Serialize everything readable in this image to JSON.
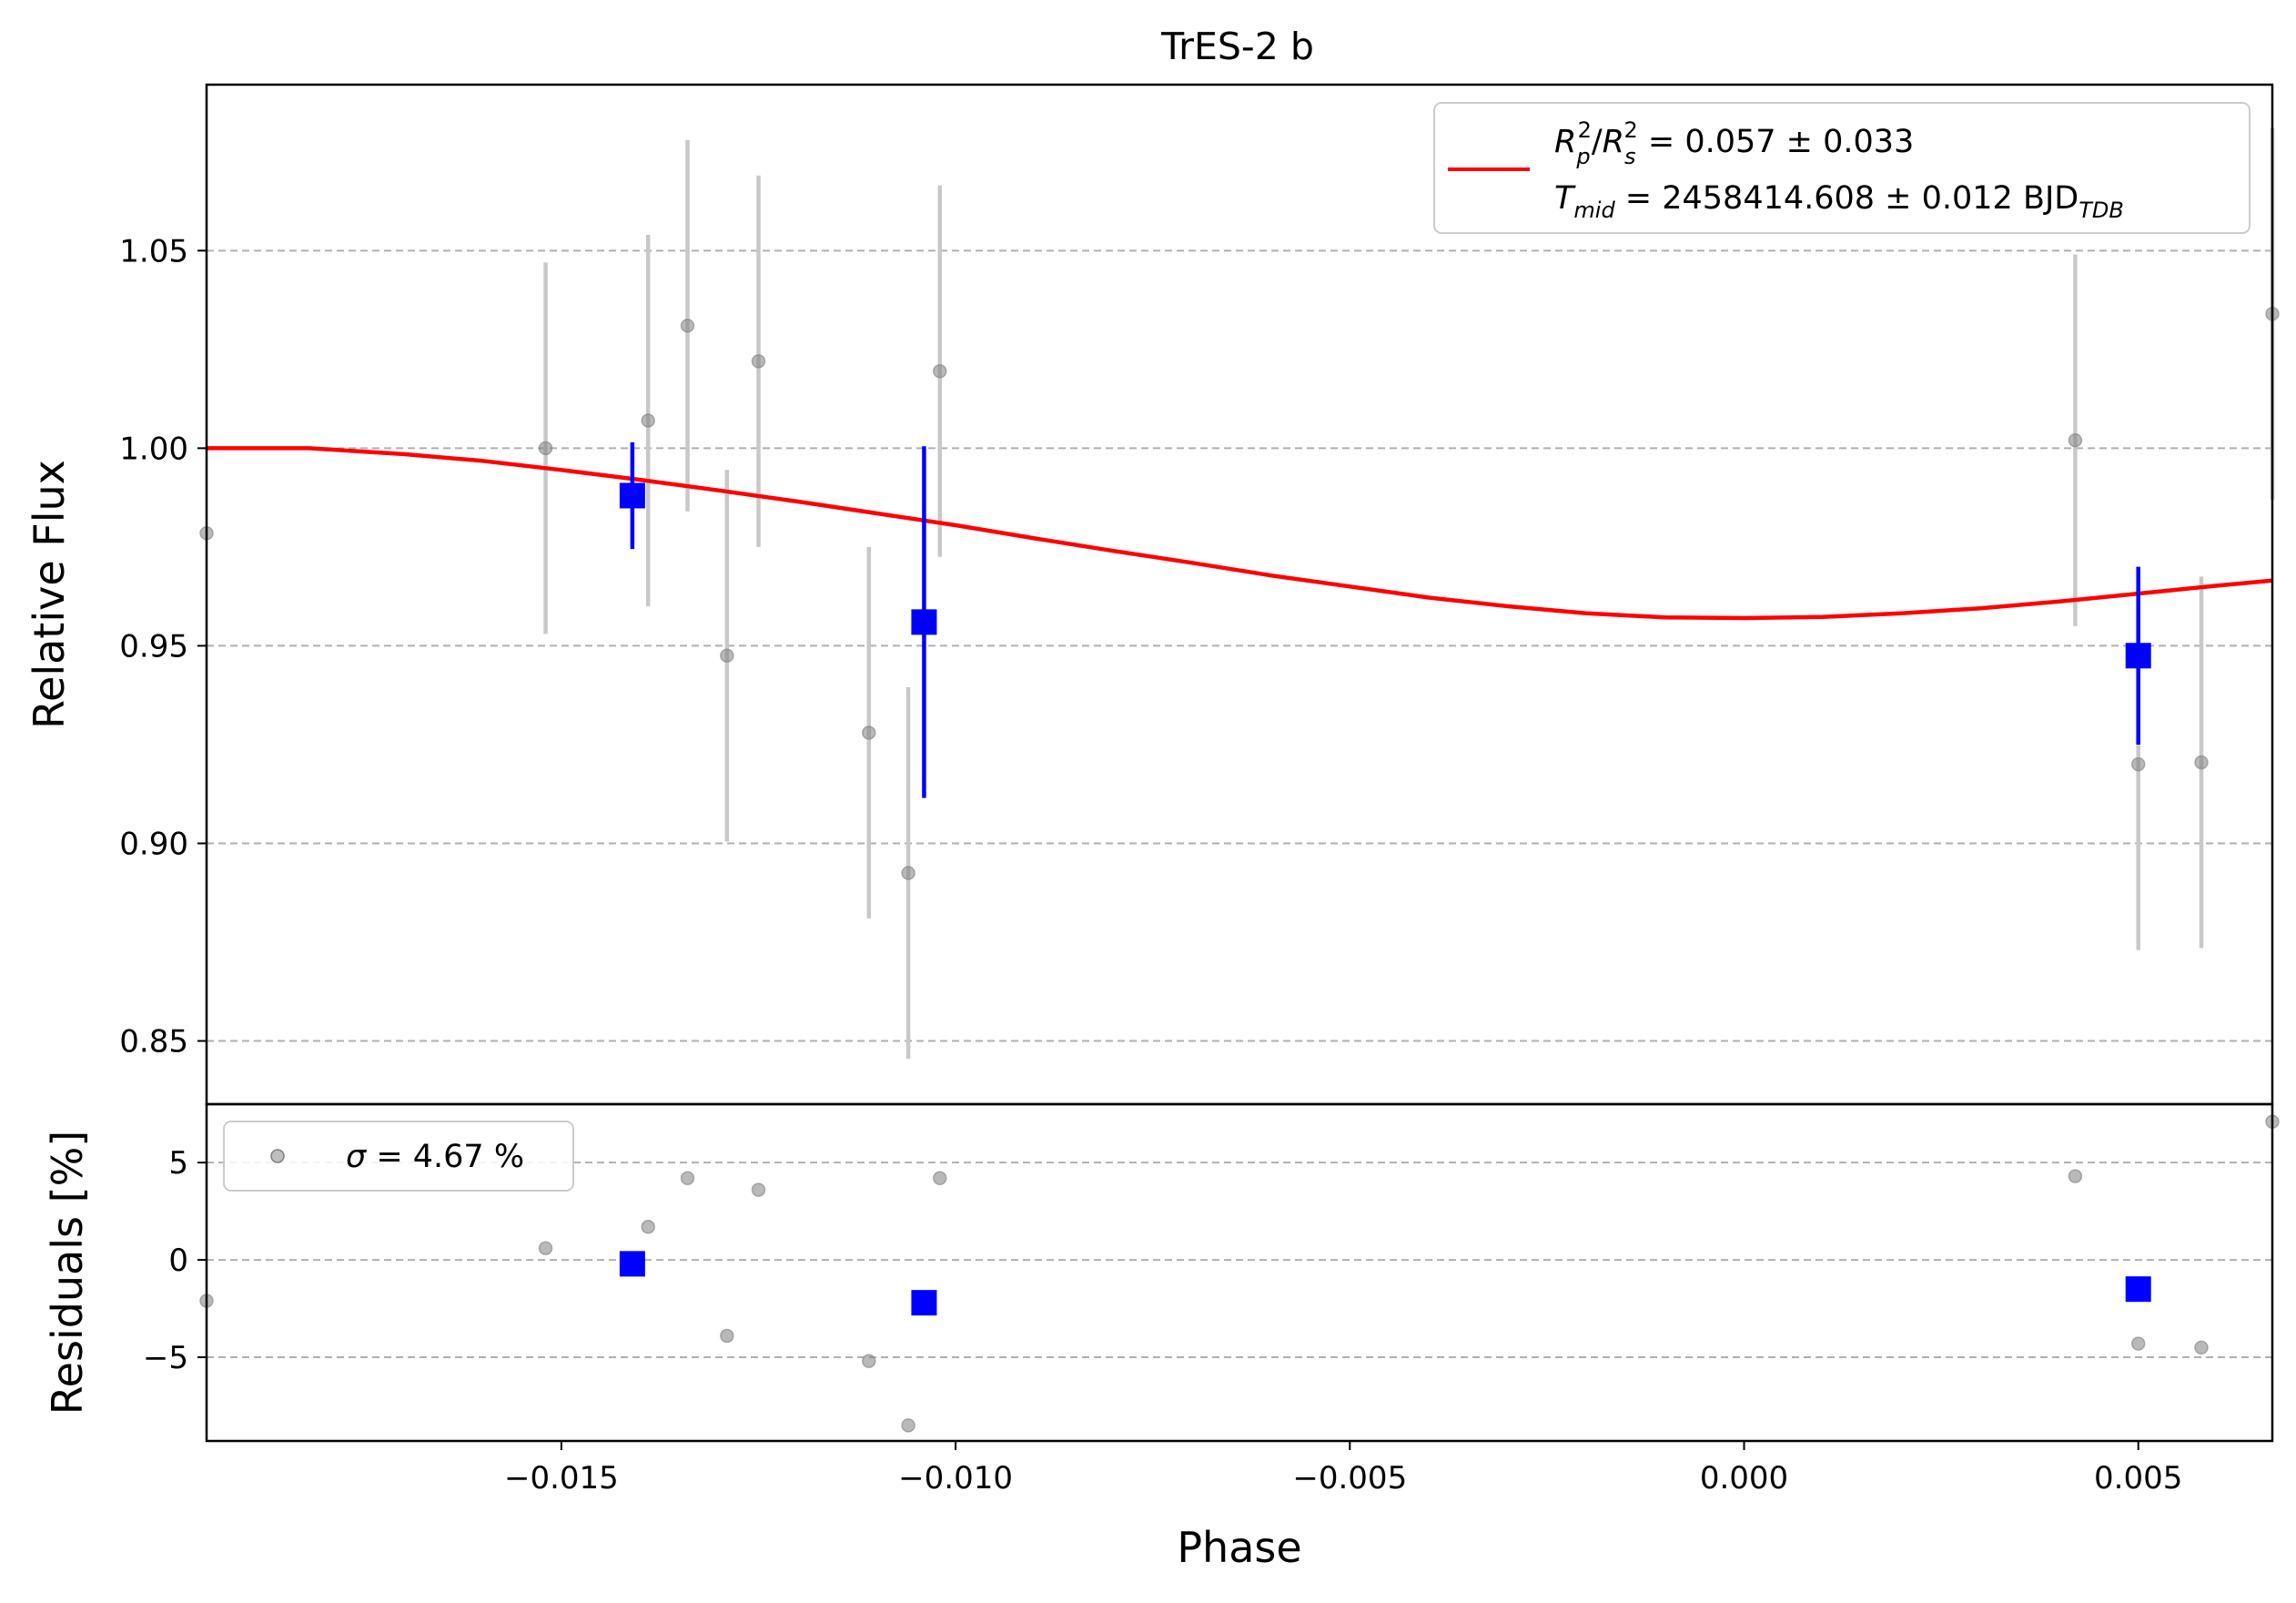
{
  "chart_data": [
    {
      "type": "scatter",
      "title": "TrES-2 b",
      "ylabel": "Relative Flux",
      "xlim": [
        -0.0195,
        0.0067
      ],
      "ylim": [
        0.834,
        1.092
      ],
      "yticks": [
        0.85,
        0.9,
        0.95,
        1.0,
        1.05
      ],
      "ytick_labels": [
        "0.85",
        "0.90",
        "0.95",
        "1.00",
        "1.05"
      ],
      "grid": "horizontal dashed",
      "legend": {
        "placement": "top-right",
        "entries": [
          {
            "color": "#ff0000",
            "line1": {
              "main": "R",
              "sub": "p",
              "sup": "2",
              "sep": "/",
              "main2": "R",
              "sub2": "s",
              "sup2": "2",
              "value": " = 0.057 ± 0.033"
            },
            "line2": {
              "main": "T",
              "sub": "mid",
              "value": " = 2458414.608 ± 0.012 BJD",
              "sub2": "TDB"
            }
          }
        ]
      },
      "colors": {
        "data": "#808080",
        "errorbar": "#c8c8c8",
        "binned": "#0000ff",
        "model": "#ff0000"
      },
      "series": [
        {
          "kind": "data",
          "points": [
            {
              "x": -0.0195,
              "y": 0.9785,
              "err": 0.0
            },
            {
              "x": -0.0152,
              "y": 1.0,
              "err": 0.047
            },
            {
              "x": -0.0139,
              "y": 1.007,
              "err": 0.047
            },
            {
              "x": -0.0134,
              "y": 1.031,
              "err": 0.047
            },
            {
              "x": -0.0129,
              "y": 0.9475,
              "err": 0.047
            },
            {
              "x": -0.0125,
              "y": 1.022,
              "err": 0.047
            },
            {
              "x": -0.0111,
              "y": 0.928,
              "err": 0.047
            },
            {
              "x": -0.0106,
              "y": 0.8925,
              "err": 0.047
            },
            {
              "x": -0.0102,
              "y": 1.0195,
              "err": 0.047
            },
            {
              "x": 0.0042,
              "y": 1.002,
              "err": 0.047
            },
            {
              "x": 0.005,
              "y": 0.92,
              "err": 0.047
            },
            {
              "x": 0.0058,
              "y": 0.9205,
              "err": 0.047
            },
            {
              "x": 0.0067,
              "y": 1.034,
              "err": 0.047
            }
          ]
        },
        {
          "kind": "binned",
          "points": [
            {
              "x": -0.0141,
              "y": 0.988,
              "err": 0.0135
            },
            {
              "x": -0.0104,
              "y": 0.956,
              "err": 0.0445
            },
            {
              "x": 0.005,
              "y": 0.9475,
              "err": 0.0225
            }
          ]
        },
        {
          "kind": "model",
          "x": [
            -0.0195,
            -0.0182,
            -0.017,
            -0.016,
            -0.015,
            -0.014,
            -0.013,
            -0.012,
            -0.011,
            -0.01,
            -0.009,
            -0.008,
            -0.007,
            -0.006,
            -0.005,
            -0.004,
            -0.003,
            -0.002,
            -0.001,
            0.0,
            0.001,
            0.002,
            0.003,
            0.004,
            0.005,
            0.006,
            0.0067
          ],
          "y": [
            1.0,
            1.0,
            0.9985,
            0.9968,
            0.9945,
            0.992,
            0.9893,
            0.9865,
            0.9835,
            0.9805,
            0.9772,
            0.974,
            0.971,
            0.9678,
            0.965,
            0.9622,
            0.96,
            0.9582,
            0.9572,
            0.957,
            0.9573,
            0.9582,
            0.9595,
            0.9612,
            0.9632,
            0.9652,
            0.9665
          ]
        }
      ]
    },
    {
      "type": "scatter",
      "xlabel": "Phase",
      "ylabel": "Residuals [%]",
      "xlim": [
        -0.0195,
        0.0067
      ],
      "ylim": [
        -9.3,
        8.0
      ],
      "xticks": [
        -0.015,
        -0.01,
        -0.005,
        0.0,
        0.005
      ],
      "xtick_labels": [
        "−0.015",
        "−0.010",
        "−0.005",
        "0.000",
        "0.005"
      ],
      "yticks": [
        -5,
        0,
        5
      ],
      "ytick_labels": [
        "−5",
        "0",
        "5"
      ],
      "grid": "horizontal dashed",
      "legend": {
        "placement": "top-left",
        "entries": [
          {
            "marker": "circle",
            "color": "#808080",
            "sigma_symbol": "σ",
            "value": " = 4.67 %"
          }
        ]
      },
      "series": [
        {
          "kind": "data",
          "points": [
            {
              "x": -0.0195,
              "y": -2.1
            },
            {
              "x": -0.0152,
              "y": 0.6
            },
            {
              "x": -0.0139,
              "y": 1.7
            },
            {
              "x": -0.0134,
              "y": 4.2
            },
            {
              "x": -0.0129,
              "y": -3.9
            },
            {
              "x": -0.0125,
              "y": 3.6
            },
            {
              "x": -0.0111,
              "y": -5.2
            },
            {
              "x": -0.0106,
              "y": -8.5
            },
            {
              "x": -0.0102,
              "y": 4.2
            },
            {
              "x": 0.0042,
              "y": 4.3
            },
            {
              "x": 0.005,
              "y": -4.3
            },
            {
              "x": 0.0058,
              "y": -4.5
            },
            {
              "x": 0.0067,
              "y": 7.1
            }
          ]
        },
        {
          "kind": "binned",
          "points": [
            {
              "x": -0.0141,
              "y": -0.2
            },
            {
              "x": -0.0104,
              "y": -2.2
            },
            {
              "x": 0.005,
              "y": -1.5
            }
          ]
        }
      ]
    }
  ]
}
